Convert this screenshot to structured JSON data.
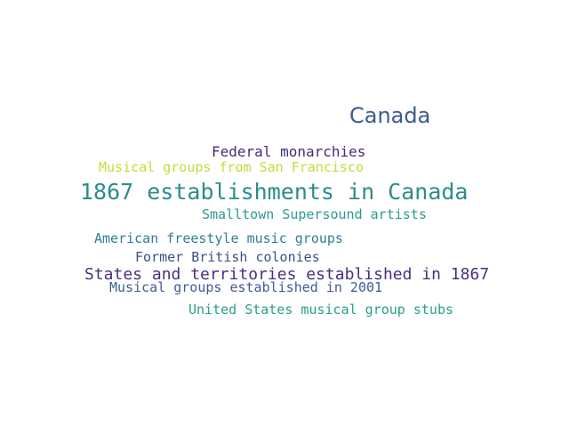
{
  "words": [
    {
      "text": "Canada",
      "color": "#3b5a8e"
    },
    {
      "text": "Federal monarchies",
      "color": "#472a7a"
    },
    {
      "text": "Musical groups from San Francisco",
      "color": "#c9d93a"
    },
    {
      "text": "1867 establishments in Canada",
      "color": "#2d8c8c"
    },
    {
      "text": "Smalltown Supersound artists",
      "color": "#2e9a8e"
    },
    {
      "text": "American freestyle music groups",
      "color": "#2f7f96"
    },
    {
      "text": "Former British colonies",
      "color": "#3a4f8a"
    },
    {
      "text": "States and territories established in 1867",
      "color": "#4b2f7f"
    },
    {
      "text": "Musical groups established in 2001",
      "color": "#3f5e94"
    },
    {
      "text": "United States musical group stubs",
      "color": "#27a08a"
    }
  ]
}
